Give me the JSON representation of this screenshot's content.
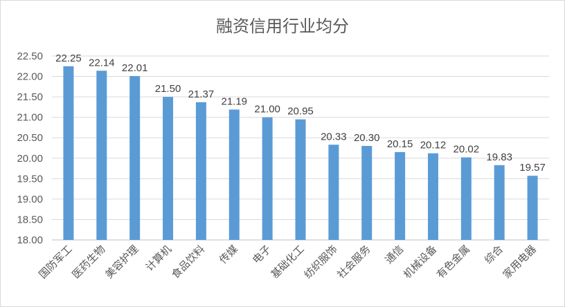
{
  "chart_data": {
    "type": "bar",
    "title": "融资信用行业均分",
    "xlabel": "",
    "ylabel": "",
    "ylim": [
      18.0,
      22.5
    ],
    "yticks": [
      "18.00",
      "18.50",
      "19.00",
      "19.50",
      "20.00",
      "20.50",
      "21.00",
      "21.50",
      "22.00",
      "22.50"
    ],
    "grid": true,
    "legend": "none",
    "bar_color": "#5b9bd5",
    "categories": [
      "国防军工",
      "医药生物",
      "美容护理",
      "计算机",
      "食品饮料",
      "传媒",
      "电子",
      "基础化工",
      "纺织服饰",
      "社会服务",
      "通信",
      "机械设备",
      "有色金属",
      "综合",
      "家用电器"
    ],
    "values": [
      22.25,
      22.14,
      22.01,
      21.5,
      21.37,
      21.19,
      21.0,
      20.95,
      20.33,
      20.3,
      20.15,
      20.12,
      20.02,
      19.83,
      19.57
    ],
    "data_labels": [
      "22.25",
      "22.14",
      "22.01",
      "21.50",
      "21.37",
      "21.19",
      "21.00",
      "20.95",
      "20.33",
      "20.30",
      "20.15",
      "20.12",
      "20.02",
      "19.83",
      "19.57"
    ]
  }
}
